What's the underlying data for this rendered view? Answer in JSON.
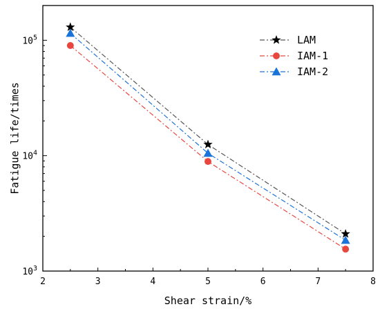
{
  "chart_data": {
    "type": "line",
    "xlabel": "Shear strain/%",
    "ylabel": "Fatigue life/times",
    "xlim": [
      2,
      8
    ],
    "ylim": [
      1000,
      200000
    ],
    "yscale": "log",
    "grid": false,
    "legend_position": "top-right",
    "xticks": [
      "2",
      "3",
      "4",
      "5",
      "6",
      "7",
      "8"
    ],
    "yticks": [
      {
        "value": 100000,
        "base": "10",
        "exp": "5"
      },
      {
        "value": 10000,
        "base": "10",
        "exp": "4"
      },
      {
        "value": 1000,
        "base": "10",
        "exp": "3"
      }
    ],
    "series": [
      {
        "name": "LAM",
        "color": "#555555",
        "marker": "star",
        "marker_color": "#000000",
        "x": [
          2.5,
          5,
          7.5
        ],
        "y": [
          130000,
          12500,
          2100
        ]
      },
      {
        "name": "IAM-1",
        "color": "#e8473f",
        "marker": "circle",
        "marker_color": "#e8473f",
        "x": [
          2.5,
          5,
          7.5
        ],
        "y": [
          90000,
          8900,
          1550
        ]
      },
      {
        "name": "IAM-2",
        "color": "#1a73d9",
        "marker": "triangle",
        "marker_color": "#1a73d9",
        "x": [
          2.5,
          5,
          7.5
        ],
        "y": [
          115000,
          10500,
          1850
        ]
      }
    ]
  }
}
